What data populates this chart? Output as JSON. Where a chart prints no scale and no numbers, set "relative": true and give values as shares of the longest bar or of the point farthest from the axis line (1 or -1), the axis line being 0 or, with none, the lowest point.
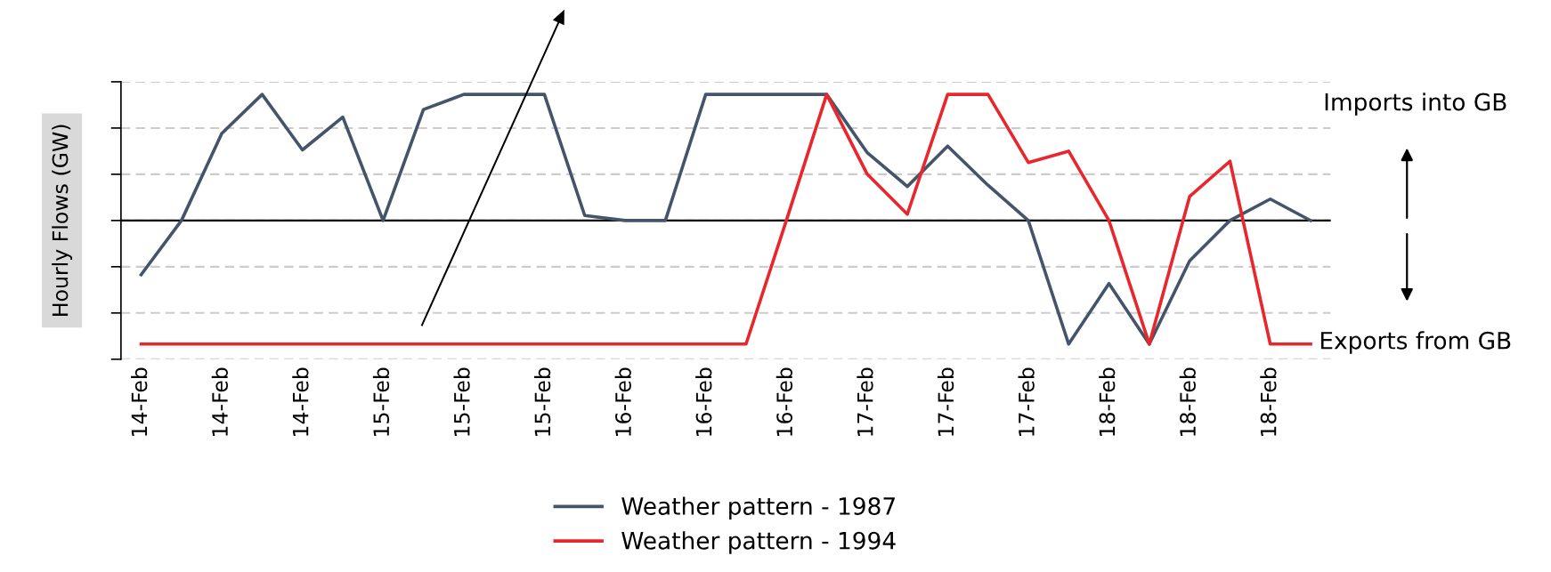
{
  "chart_data": {
    "type": "line",
    "relative": true,
    "ylabel": "Hourly Flows (GW)",
    "categories": [
      "14-Feb",
      null,
      "14-Feb",
      null,
      "14-Feb",
      null,
      "15-Feb",
      null,
      "15-Feb",
      null,
      "15-Feb",
      null,
      "16-Feb",
      null,
      "16-Feb",
      null,
      "16-Feb",
      null,
      "17-Feb",
      null,
      "17-Feb",
      null,
      "17-Feb",
      null,
      "18-Feb",
      null,
      "18-Feb",
      null,
      "18-Feb",
      null
    ],
    "series": [
      {
        "name": "Weather pattern - 1987",
        "color": "#44546a",
        "values": [
          -0.43,
          0,
          0.69,
          1,
          0.56,
          0.82,
          0,
          0.88,
          1,
          1,
          1,
          0.04,
          0,
          0,
          1,
          1,
          1,
          1,
          0.54,
          0.27,
          0.59,
          0.28,
          0,
          -0.98,
          -0.5,
          -0.98,
          -0.32,
          0,
          0.17,
          0
        ]
      },
      {
        "name": "Weather pattern - 1994",
        "color": "#e8262b",
        "values": [
          -0.98,
          -0.98,
          -0.98,
          -0.98,
          -0.98,
          -0.98,
          -0.98,
          -0.98,
          -0.98,
          -0.98,
          -0.98,
          -0.98,
          -0.98,
          -0.98,
          -0.98,
          -0.98,
          0,
          1,
          0.37,
          0.05,
          1,
          1,
          0.46,
          0.55,
          0,
          -0.98,
          0.19,
          0.47,
          -0.98,
          -0.98
        ]
      }
    ],
    "annotations": [
      "Imports into GB",
      "Exports from GB"
    ],
    "grid": "y",
    "legend": "bottom",
    "line_style": "solid",
    "marker": "none"
  }
}
